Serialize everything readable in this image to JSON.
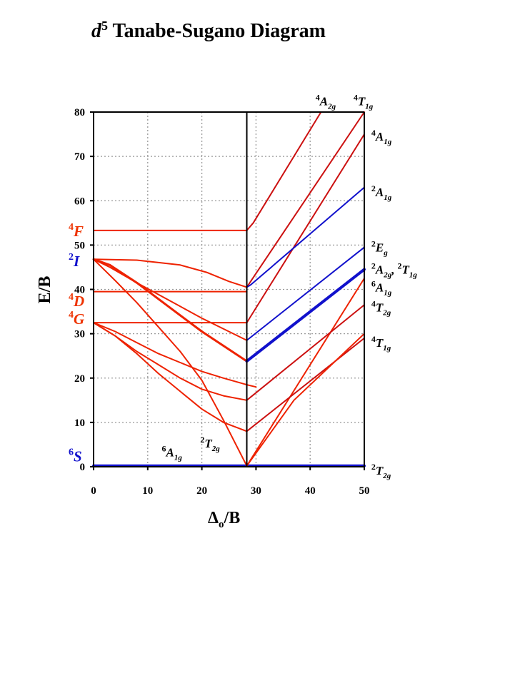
{
  "title": {
    "italic": "d",
    "sup": "5",
    "text": " Tanabe-Sugano Diagram"
  },
  "colors": {
    "high_spin": "#ee2200",
    "high_spin_right": "#cc1010",
    "low_spin": "#1111cc",
    "free_ion_quartet": "#ee3300",
    "free_ion_other": "#1111cc"
  },
  "chart_data": {
    "type": "line",
    "xlabel": {
      "main": "Δ",
      "sub": "o",
      "rest": "/B"
    },
    "ylabel": "E/B",
    "xlim": [
      0,
      50
    ],
    "ylim": [
      0,
      80
    ],
    "xticks": [
      0,
      10,
      20,
      30,
      40,
      50
    ],
    "yticks": [
      0,
      10,
      20,
      30,
      40,
      50,
      60,
      70,
      80
    ],
    "grid": true,
    "crossover_x": 28.3,
    "free_ion_terms": [
      {
        "sup": "4",
        "letter": "F",
        "y": 53.3,
        "color": "#ee3300"
      },
      {
        "sup": "2",
        "letter": "I",
        "y": 46.5,
        "color": "#1111cc"
      },
      {
        "sup": "4",
        "letter": "D",
        "y": 37.5,
        "color": "#ee3300"
      },
      {
        "sup": "4",
        "letter": "G",
        "y": 33.5,
        "color": "#ee3300"
      },
      {
        "sup": "6",
        "letter": "S",
        "y": 2.5,
        "color": "#1111cc"
      }
    ],
    "term_labels": [
      {
        "id": "top-4A2g",
        "sup": "4",
        "letter": "A",
        "sub": "2g",
        "x": 41.0,
        "y": 82.5
      },
      {
        "id": "top-4T1g",
        "sup": "4",
        "letter": "T",
        "sub": "1g",
        "x": 48.0,
        "y": 82.5
      },
      {
        "id": "r-4A1g",
        "sup": "4",
        "letter": "A",
        "sub": "1g",
        "x": 51.3,
        "y": 74.5
      },
      {
        "id": "r-2A1g",
        "sup": "2",
        "letter": "A",
        "sub": "1g",
        "x": 51.3,
        "y": 62.0
      },
      {
        "id": "r-2Eg",
        "sup": "2",
        "letter": "E",
        "sub": "g",
        "x": 51.3,
        "y": 49.5
      },
      {
        "id": "r-2A2g",
        "sup": "2",
        "letter": "A",
        "sub": "2g",
        "x": 51.3,
        "y": 44.5,
        "tail": {
          "sup": "2",
          "letter": "T",
          "sub": "1g"
        }
      },
      {
        "id": "r-6A1g",
        "sup": "6",
        "letter": "A",
        "sub": "1g",
        "x": 51.3,
        "y": 40.5
      },
      {
        "id": "r-4T2g",
        "sup": "4",
        "letter": "T",
        "sub": "2g",
        "x": 51.3,
        "y": 36.0
      },
      {
        "id": "r-4T1g",
        "sup": "4",
        "letter": "T",
        "sub": "1g",
        "x": 51.3,
        "y": 28.0
      },
      {
        "id": "r-2T2g",
        "sup": "2",
        "letter": "T",
        "sub": "2g",
        "x": 51.3,
        "y": -0.8
      },
      {
        "id": "in-6A1g",
        "sup": "6",
        "letter": "A",
        "sub": "1g",
        "x": 12.6,
        "y": 3.3
      },
      {
        "id": "in-2T2g",
        "sup": "2",
        "letter": "T",
        "sub": "2g",
        "x": 19.7,
        "y": 5.3
      }
    ],
    "series": [
      {
        "color": "#1111cc",
        "width": 4,
        "points": [
          [
            0,
            0.2
          ],
          [
            50,
            0.2
          ]
        ]
      },
      {
        "color": "#ee2200",
        "width": 2,
        "points": [
          [
            0,
            53.3
          ],
          [
            28.3,
            53.3
          ]
        ]
      },
      {
        "color": "#ee2200",
        "width": 2,
        "points": [
          [
            0,
            39.5
          ],
          [
            28.3,
            39.5
          ]
        ]
      },
      {
        "color": "#ee2200",
        "width": 2,
        "points": [
          [
            0,
            32.5
          ],
          [
            28.3,
            32.5
          ]
        ]
      },
      {
        "color": "#ee2200",
        "width": 2,
        "points": [
          [
            0,
            46.8
          ],
          [
            8,
            46.6
          ],
          [
            16,
            45.5
          ],
          [
            21,
            43.8
          ],
          [
            25,
            41.8
          ],
          [
            28.3,
            40.5
          ]
        ]
      },
      {
        "color": "#ee2200",
        "width": 3,
        "points": [
          [
            0,
            46.8
          ],
          [
            3,
            45.5
          ],
          [
            8,
            41.5
          ],
          [
            14,
            36
          ],
          [
            20,
            30.5
          ],
          [
            28.3,
            23.8
          ]
        ]
      },
      {
        "color": "#ee2200",
        "width": 2,
        "points": [
          [
            0,
            46.8
          ],
          [
            3,
            45
          ],
          [
            8,
            41.5
          ],
          [
            14,
            37.5
          ],
          [
            20,
            33.5
          ],
          [
            28.3,
            28.5
          ]
        ]
      },
      {
        "color": "#ee2200",
        "width": 2,
        "points": [
          [
            0,
            46.8
          ],
          [
            4,
            42
          ],
          [
            8,
            37
          ],
          [
            12,
            31.5
          ],
          [
            16,
            26
          ],
          [
            20,
            19.5
          ],
          [
            24,
            10.5
          ],
          [
            28.3,
            0.2
          ]
        ]
      },
      {
        "color": "#ee2200",
        "width": 2,
        "points": [
          [
            0,
            32.5
          ],
          [
            4,
            29.5
          ],
          [
            8,
            26
          ],
          [
            12,
            23
          ],
          [
            16,
            20
          ],
          [
            20,
            17.5
          ],
          [
            24,
            16
          ],
          [
            28.3,
            15
          ]
        ]
      },
      {
        "color": "#ee2200",
        "width": 2,
        "points": [
          [
            0,
            32.5
          ],
          [
            4,
            29.5
          ],
          [
            8,
            25.5
          ],
          [
            12,
            21
          ],
          [
            16,
            17
          ],
          [
            20,
            13
          ],
          [
            24,
            10
          ],
          [
            28.3,
            8
          ]
        ]
      },
      {
        "color": "#ee2200",
        "width": 2,
        "points": [
          [
            0,
            32.5
          ],
          [
            4,
            30.5
          ],
          [
            8,
            28
          ],
          [
            12,
            25.5
          ],
          [
            16,
            23.5
          ],
          [
            20,
            21.5
          ],
          [
            24,
            20
          ],
          [
            28.3,
            18.5
          ],
          [
            30,
            18
          ]
        ]
      },
      {
        "color": "#cc1010",
        "width": 2,
        "points": [
          [
            28.3,
            53.3
          ],
          [
            29.5,
            55
          ],
          [
            42,
            80
          ]
        ]
      },
      {
        "color": "#cc1010",
        "width": 2,
        "points": [
          [
            28.3,
            40.5
          ],
          [
            50,
            80
          ]
        ]
      },
      {
        "color": "#cc1010",
        "width": 2,
        "points": [
          [
            28.3,
            32.5
          ],
          [
            50,
            75
          ]
        ]
      },
      {
        "color": "#1111cc",
        "width": 2,
        "points": [
          [
            28.3,
            40.5
          ],
          [
            29,
            41
          ],
          [
            50,
            63
          ]
        ]
      },
      {
        "color": "#1111cc",
        "width": 2,
        "points": [
          [
            28.3,
            28.5
          ],
          [
            50,
            49.5
          ]
        ]
      },
      {
        "color": "#1111cc",
        "width": 4,
        "points": [
          [
            28.3,
            23.8
          ],
          [
            50,
            44.5
          ]
        ]
      },
      {
        "color": "#ee2200",
        "width": 2,
        "points": [
          [
            28.3,
            0.2
          ],
          [
            50,
            42.5
          ]
        ]
      },
      {
        "color": "#cc1010",
        "width": 2,
        "points": [
          [
            28.3,
            15
          ],
          [
            50,
            36.5
          ]
        ]
      },
      {
        "color": "#cc1010",
        "width": 2,
        "points": [
          [
            28.3,
            8
          ],
          [
            50,
            29
          ]
        ]
      },
      {
        "color": "#ee2200",
        "width": 2,
        "points": [
          [
            28.3,
            0.2
          ],
          [
            37,
            15
          ],
          [
            50,
            30
          ]
        ]
      }
    ]
  }
}
